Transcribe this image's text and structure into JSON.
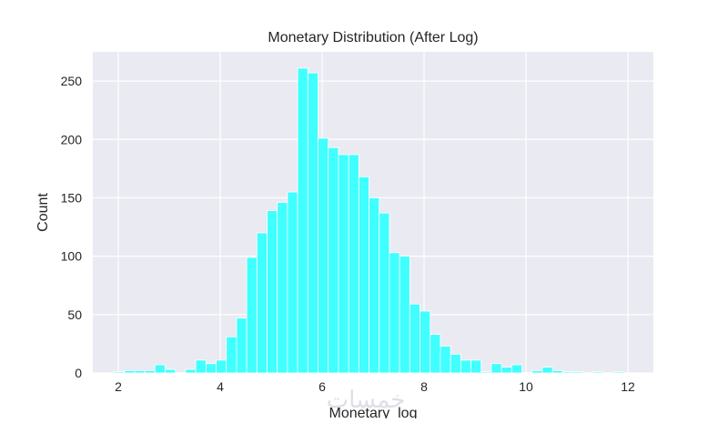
{
  "chart_data": {
    "type": "bar",
    "title": "Monetary Distribution (After Log)",
    "xlabel": "Monetary_log",
    "ylabel": "Count",
    "xlim": [
      1.5,
      12.5
    ],
    "ylim": [
      0,
      275
    ],
    "xticks": [
      2,
      4,
      6,
      8,
      10,
      12
    ],
    "yticks": [
      0,
      50,
      100,
      150,
      200,
      250
    ],
    "bar_color": "#40ffff",
    "background_color": "#eaeaf2",
    "grid": true,
    "bin_edges": [
      1.92,
      2.12,
      2.32,
      2.52,
      2.72,
      2.92,
      3.12,
      3.32,
      3.52,
      3.72,
      3.92,
      4.12,
      4.32,
      4.52,
      4.72,
      4.92,
      5.12,
      5.32,
      5.52,
      5.72,
      5.92,
      6.12,
      6.32,
      6.52,
      6.72,
      6.92,
      7.12,
      7.32,
      7.52,
      7.72,
      7.92,
      8.12,
      8.32,
      8.52,
      8.72,
      8.92,
      9.12,
      9.32,
      9.52,
      9.72,
      9.92,
      10.12,
      10.32,
      10.52,
      10.72,
      10.92,
      11.12,
      11.32,
      11.52,
      11.72,
      11.92
    ],
    "values": [
      1,
      2,
      2,
      2,
      7,
      3,
      0,
      3,
      11,
      8,
      11,
      31,
      47,
      99,
      120,
      139,
      146,
      155,
      261,
      257,
      201,
      193,
      187,
      187,
      168,
      150,
      137,
      103,
      100,
      59,
      53,
      33,
      23,
      16,
      11,
      11,
      1,
      8,
      5,
      7,
      0,
      2,
      5,
      2,
      1,
      1,
      0,
      1,
      0,
      1
    ]
  },
  "watermark_text": "خمسات"
}
